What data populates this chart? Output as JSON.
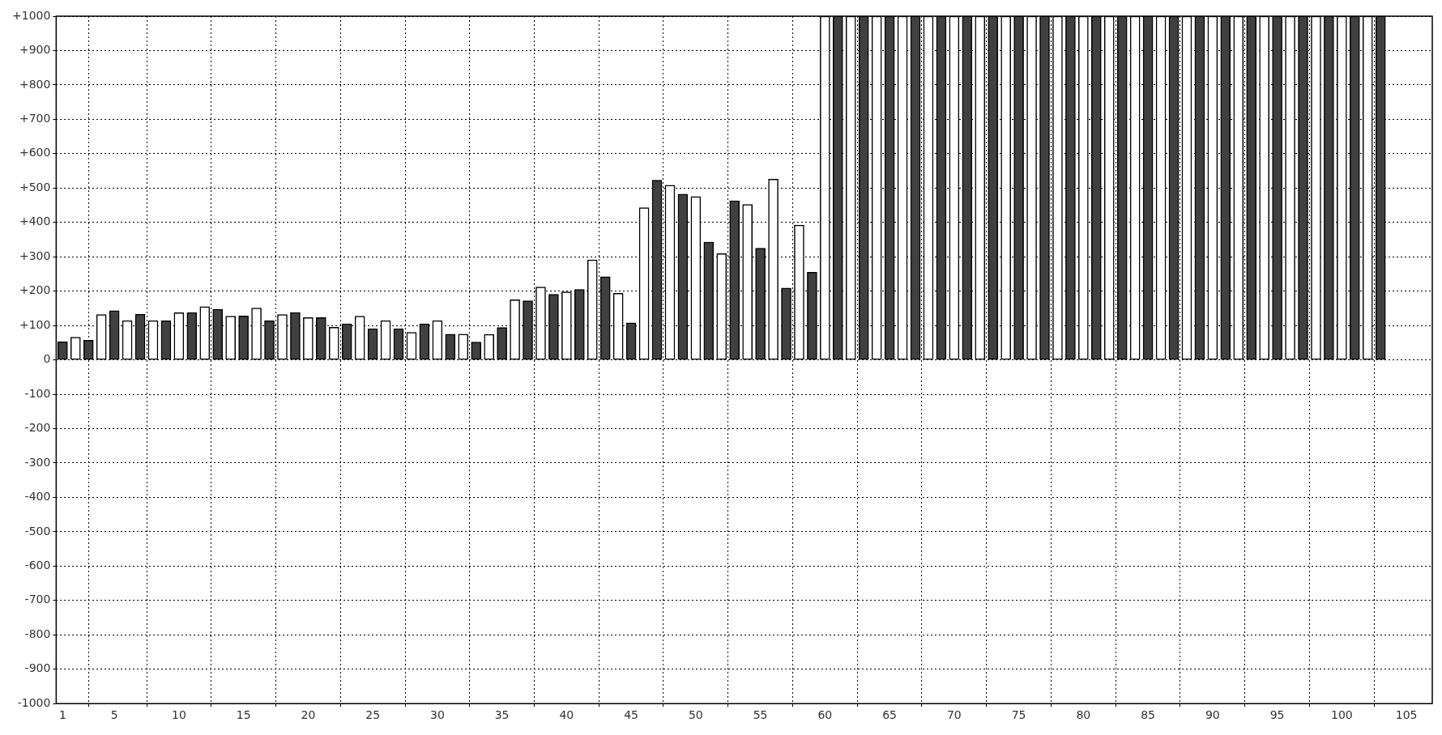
{
  "chart_data": {
    "type": "bar",
    "grid": true,
    "legend": false,
    "xlim": [
      0.5,
      107
    ],
    "xticks": [
      1,
      5,
      10,
      15,
      20,
      25,
      30,
      35,
      40,
      45,
      50,
      55,
      60,
      65,
      70,
      75,
      80,
      85,
      90,
      95,
      100,
      105
    ],
    "ylim": [
      -1000,
      1000
    ],
    "yticks": [
      {
        "value": -1000,
        "label": "-1000"
      },
      {
        "value": -900,
        "label": "-900"
      },
      {
        "value": -800,
        "label": "-800"
      },
      {
        "value": -700,
        "label": "-700"
      },
      {
        "value": -600,
        "label": "-600"
      },
      {
        "value": -500,
        "label": "-500"
      },
      {
        "value": -400,
        "label": "-400"
      },
      {
        "value": -300,
        "label": "-300"
      },
      {
        "value": -200,
        "label": "-200"
      },
      {
        "value": -100,
        "label": "-100"
      },
      0,
      {
        "value": 100,
        "label": "+100"
      },
      {
        "value": 200,
        "label": "+200"
      },
      {
        "value": 300,
        "label": "+300"
      },
      {
        "value": 400,
        "label": "+400"
      },
      {
        "value": 500,
        "label": "+500"
      },
      {
        "value": 600,
        "label": "+600"
      },
      {
        "value": 700,
        "label": "+700"
      },
      {
        "value": 800,
        "label": "+800"
      },
      {
        "value": 900,
        "label": "+900"
      },
      {
        "value": 1000,
        "label": "+1000"
      }
    ],
    "series": [
      {
        "color": "#404040",
        "x": [
          1,
          3,
          5,
          7,
          9,
          11,
          13,
          15,
          17,
          19,
          21,
          23,
          25,
          27,
          29,
          31,
          33,
          35,
          37,
          39,
          41,
          43,
          45,
          47,
          49,
          51,
          53,
          55,
          57,
          59,
          61,
          63,
          65,
          67,
          69,
          71,
          73,
          75,
          77,
          79,
          81,
          83,
          85,
          87,
          89,
          91,
          93,
          95,
          97,
          99,
          101,
          103
        ],
        "values": [
          53,
          57,
          143,
          133,
          114,
          138,
          147,
          128,
          114,
          138,
          123,
          105,
          91,
          91,
          105,
          75,
          52,
          94,
          172,
          191,
          205,
          242,
          108,
          523,
          482,
          343,
          463,
          325,
          209,
          255,
          1000,
          1000,
          1000,
          1000,
          1000,
          1000,
          1000,
          1000,
          1000,
          1000,
          1000,
          1000,
          1000,
          1000,
          1000,
          1000,
          1000,
          1000,
          1000,
          1000,
          1000,
          1000
        ]
      },
      {
        "color": "#ffffff",
        "x": [
          2,
          4,
          6,
          8,
          10,
          12,
          14,
          16,
          18,
          20,
          22,
          24,
          26,
          28,
          30,
          32,
          34,
          36,
          38,
          40,
          42,
          44,
          46,
          48,
          50,
          52,
          54,
          56,
          58,
          60,
          62,
          64,
          66,
          68,
          70,
          72,
          74,
          76,
          78,
          80,
          82,
          84,
          86,
          88,
          90,
          92,
          94,
          96,
          98,
          100,
          102
        ],
        "values": [
          66,
          132,
          114,
          114,
          137,
          155,
          127,
          151,
          132,
          123,
          95,
          127,
          114,
          80,
          114,
          75,
          74,
          175,
          212,
          198,
          291,
          194,
          443,
          508,
          475,
          309,
          452,
          526,
          392,
          1000,
          1000,
          1000,
          1000,
          1000,
          1000,
          1000,
          1000,
          1000,
          1000,
          1000,
          1000,
          1000,
          1000,
          1000,
          1000,
          1000,
          1000,
          1000,
          1000,
          1000,
          1000
        ]
      }
    ]
  }
}
